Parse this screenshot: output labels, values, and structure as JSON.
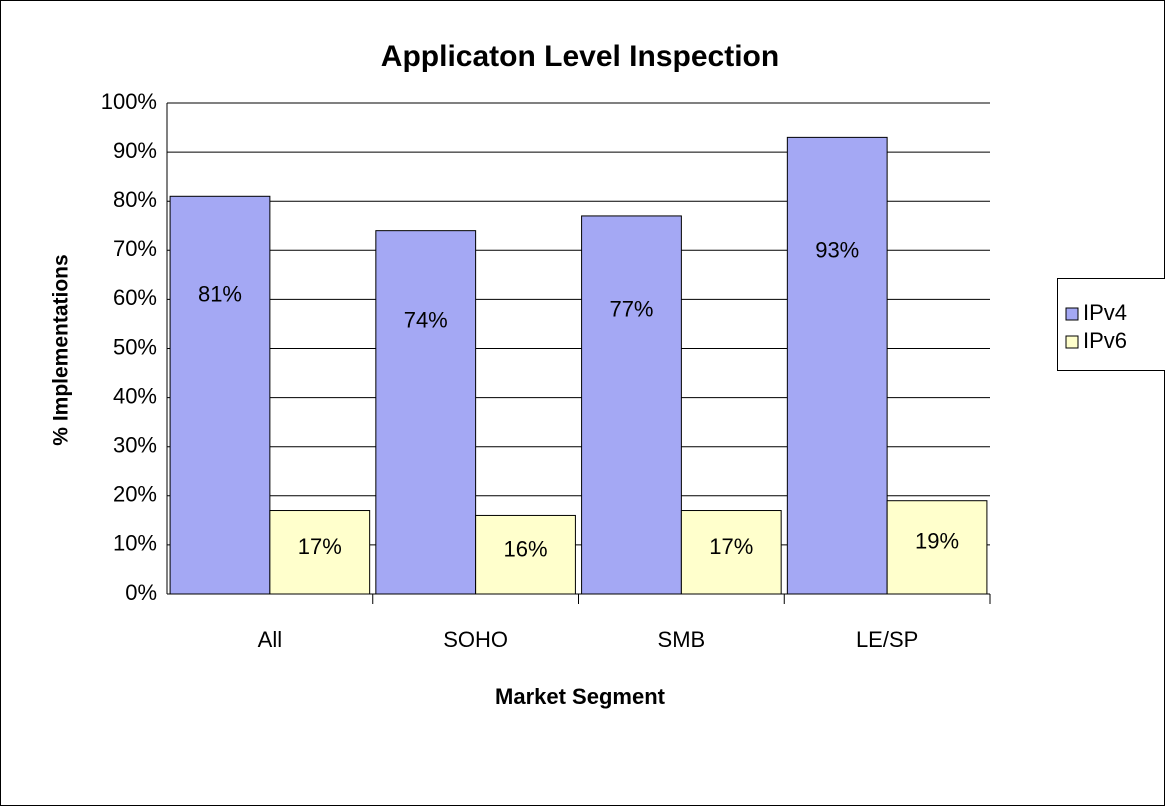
{
  "chart_data": {
    "type": "bar",
    "title": "Applicaton Level Inspection",
    "x_label": "Market Segment",
    "y_label": "% Implementations",
    "categories": [
      "All",
      "SOHO",
      "SMB",
      "LE/SP"
    ],
    "series": [
      {
        "name": "IPv4",
        "color": "#a4a8f4",
        "values": [
          81,
          74,
          77,
          93
        ],
        "value_labels": [
          "81%",
          "74%",
          "77%",
          "93%"
        ]
      },
      {
        "name": "IPv6",
        "color": "#ffffcc",
        "values": [
          17,
          16,
          17,
          19
        ],
        "value_labels": [
          "17%",
          "16%",
          "17%",
          "19%"
        ]
      }
    ],
    "ylim": [
      0,
      100
    ],
    "yticks": [
      {
        "value": 0,
        "label": "0%"
      },
      {
        "value": 10,
        "label": "10%"
      },
      {
        "value": 20,
        "label": "20%"
      },
      {
        "value": 30,
        "label": "30%"
      },
      {
        "value": 40,
        "label": "40%"
      },
      {
        "value": 50,
        "label": "50%"
      },
      {
        "value": 60,
        "label": "60%"
      },
      {
        "value": 70,
        "label": "70%"
      },
      {
        "value": 80,
        "label": "80%"
      },
      {
        "value": 90,
        "label": "90%"
      },
      {
        "value": 100,
        "label": "100%"
      }
    ],
    "grid": true,
    "legend": "right"
  }
}
